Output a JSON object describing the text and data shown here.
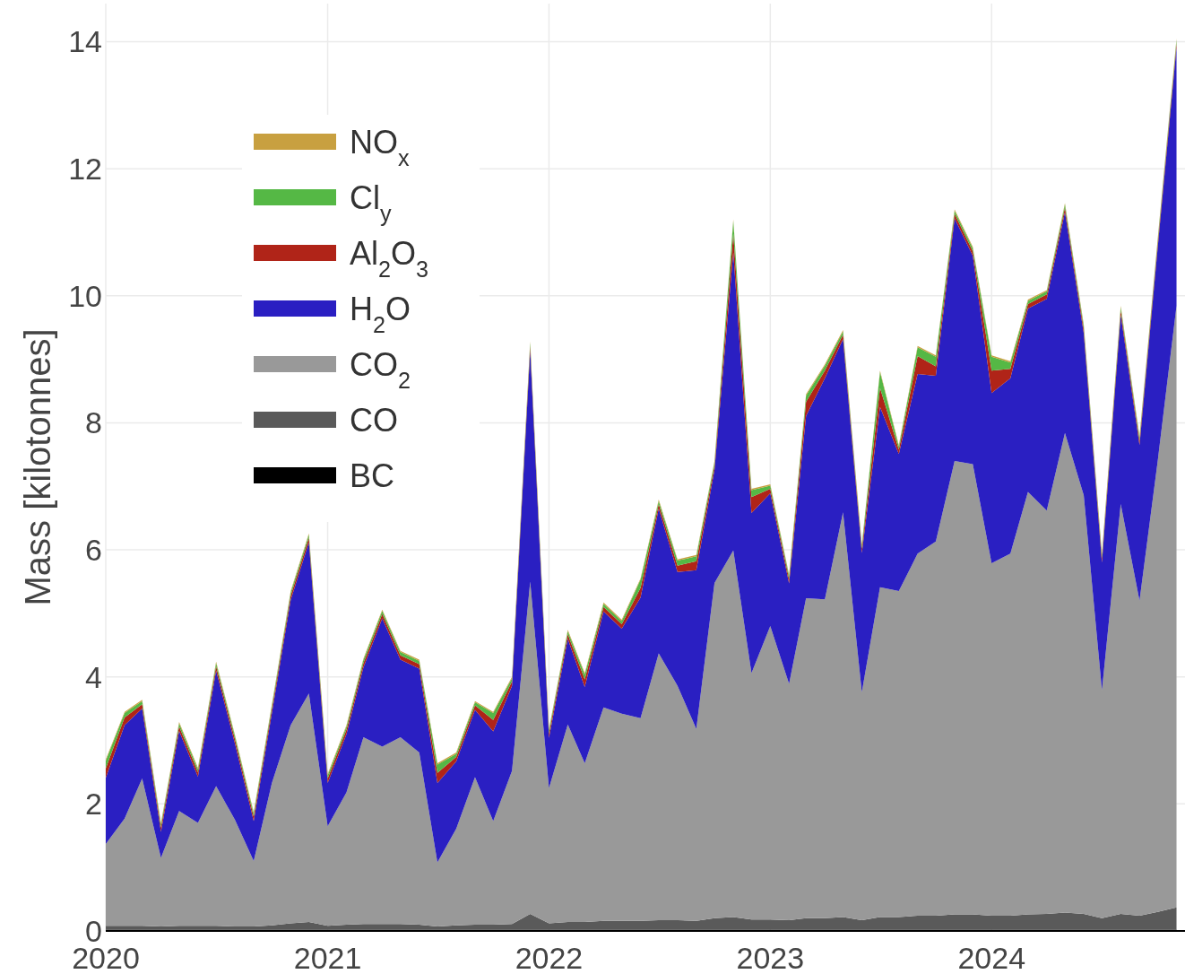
{
  "chart_data": {
    "type": "area",
    "stacked": true,
    "ylabel": "Mass [kilotonnes]",
    "x": [
      "2020-01",
      "2020-02",
      "2020-03",
      "2020-04",
      "2020-05",
      "2020-06",
      "2020-07",
      "2020-08",
      "2020-09",
      "2020-10",
      "2020-11",
      "2020-12",
      "2021-01",
      "2021-02",
      "2021-03",
      "2021-04",
      "2021-05",
      "2021-06",
      "2021-07",
      "2021-08",
      "2021-09",
      "2021-10",
      "2021-11",
      "2021-12",
      "2022-01",
      "2022-02",
      "2022-03",
      "2022-04",
      "2022-05",
      "2022-06",
      "2022-07",
      "2022-08",
      "2022-09",
      "2022-10",
      "2022-11",
      "2022-12",
      "2023-01",
      "2023-02",
      "2023-03",
      "2023-04",
      "2023-05",
      "2023-06",
      "2023-07",
      "2023-08",
      "2023-09",
      "2023-10",
      "2023-11",
      "2023-12",
      "2024-01",
      "2024-02",
      "2024-03",
      "2024-04",
      "2024-05",
      "2024-06",
      "2024-07",
      "2024-08",
      "2024-09",
      "2024-10",
      "2024-11"
    ],
    "series": [
      {
        "name": "BC",
        "color": "#000000",
        "values": [
          0.02,
          0.02,
          0.02,
          0.02,
          0.02,
          0.02,
          0.02,
          0.02,
          0.02,
          0.02,
          0.02,
          0.02,
          0.02,
          0.02,
          0.02,
          0.02,
          0.02,
          0.02,
          0.02,
          0.02,
          0.02,
          0.02,
          0.02,
          0.02,
          0.02,
          0.02,
          0.02,
          0.02,
          0.02,
          0.02,
          0.02,
          0.02,
          0.02,
          0.02,
          0.02,
          0.02,
          0.02,
          0.02,
          0.02,
          0.02,
          0.02,
          0.02,
          0.02,
          0.02,
          0.02,
          0.02,
          0.02,
          0.02,
          0.02,
          0.02,
          0.02,
          0.02,
          0.02,
          0.02,
          0.02,
          0.02,
          0.02,
          0.02,
          0.02
        ]
      },
      {
        "name": "CO",
        "color": "#5a5a5a",
        "values": [
          0.06,
          0.06,
          0.06,
          0.05,
          0.06,
          0.06,
          0.06,
          0.05,
          0.05,
          0.07,
          0.1,
          0.12,
          0.06,
          0.08,
          0.09,
          0.09,
          0.09,
          0.08,
          0.05,
          0.07,
          0.08,
          0.08,
          0.09,
          0.25,
          0.1,
          0.12,
          0.12,
          0.14,
          0.14,
          0.14,
          0.15,
          0.15,
          0.14,
          0.18,
          0.2,
          0.16,
          0.16,
          0.15,
          0.18,
          0.18,
          0.2,
          0.15,
          0.2,
          0.2,
          0.22,
          0.22,
          0.24,
          0.24,
          0.22,
          0.22,
          0.24,
          0.25,
          0.27,
          0.25,
          0.18,
          0.25,
          0.22,
          0.28,
          0.35
        ]
      },
      {
        "name": "CO$_{2}$",
        "color": "#999999",
        "values": [
          1.29,
          1.69,
          2.32,
          1.08,
          1.81,
          1.62,
          2.2,
          1.68,
          1.03,
          2.24,
          3.12,
          3.6,
          1.57,
          2.08,
          2.94,
          2.79,
          2.94,
          2.71,
          1.01,
          1.52,
          2.32,
          1.63,
          2.41,
          5.23,
          2.13,
          3.11,
          2.5,
          3.36,
          3.26,
          3.19,
          4.2,
          3.69,
          3.02,
          5.28,
          5.77,
          3.88,
          4.62,
          3.72,
          5.04,
          5.02,
          6.37,
          3.59,
          5.19,
          5.13,
          5.7,
          5.89,
          7.14,
          7.09,
          5.55,
          5.7,
          6.65,
          6.35,
          7.55,
          6.59,
          3.59,
          6.45,
          4.96,
          7.1,
          9.47
        ]
      },
      {
        "name": "H$_{2}$O",
        "color": "#2a1fc2",
        "values": [
          1.04,
          1.47,
          1.1,
          0.41,
          1.26,
          0.73,
          1.82,
          1.2,
          0.63,
          1.1,
          1.97,
          2.38,
          0.68,
          0.92,
          1.1,
          2.02,
          1.22,
          1.32,
          1.25,
          1.06,
          1.06,
          1.41,
          1.34,
          3.64,
          0.79,
          1.35,
          1.2,
          1.51,
          1.34,
          1.9,
          2.28,
          1.79,
          2.5,
          1.78,
          4.69,
          2.52,
          2.09,
          1.58,
          2.87,
          3.48,
          2.73,
          2.19,
          2.84,
          2.16,
          2.83,
          2.61,
          3.82,
          3.28,
          2.68,
          2.76,
          2.89,
          3.33,
          3.48,
          2.55,
          2.01,
          2.98,
          2.45,
          3.36,
          4.07
        ]
      },
      {
        "name": "Al$_{2}$O$_{3}$",
        "color": "#b02418",
        "values": [
          0.15,
          0.12,
          0.07,
          0.07,
          0.07,
          0.07,
          0.07,
          0.07,
          0.07,
          0.07,
          0.07,
          0.07,
          0.07,
          0.07,
          0.07,
          0.07,
          0.07,
          0.07,
          0.16,
          0.07,
          0.07,
          0.18,
          0.07,
          0.07,
          0.07,
          0.07,
          0.12,
          0.07,
          0.07,
          0.15,
          0.07,
          0.1,
          0.14,
          0.07,
          0.3,
          0.25,
          0.07,
          0.07,
          0.22,
          0.12,
          0.07,
          0.07,
          0.3,
          0.07,
          0.28,
          0.15,
          0.07,
          0.07,
          0.35,
          0.15,
          0.07,
          0.07,
          0.07,
          0.07,
          0.07,
          0.07,
          0.07,
          0.07,
          0.07
        ]
      },
      {
        "name": "Cl$_{y}$",
        "color": "#55b845",
        "values": [
          0.12,
          0.07,
          0.05,
          0.05,
          0.05,
          0.05,
          0.05,
          0.05,
          0.05,
          0.05,
          0.05,
          0.05,
          0.05,
          0.05,
          0.05,
          0.05,
          0.05,
          0.05,
          0.13,
          0.05,
          0.05,
          0.11,
          0.05,
          0.05,
          0.05,
          0.05,
          0.08,
          0.05,
          0.05,
          0.13,
          0.05,
          0.08,
          0.08,
          0.05,
          0.2,
          0.11,
          0.05,
          0.05,
          0.1,
          0.08,
          0.05,
          0.05,
          0.25,
          0.05,
          0.14,
          0.15,
          0.05,
          0.05,
          0.22,
          0.1,
          0.05,
          0.05,
          0.05,
          0.05,
          0.05,
          0.05,
          0.05,
          0.05,
          0.05
        ]
      },
      {
        "name": "NO$_{x}$",
        "color": "#c8a040",
        "values": [
          0.02,
          0.02,
          0.02,
          0.02,
          0.02,
          0.02,
          0.02,
          0.02,
          0.02,
          0.02,
          0.02,
          0.02,
          0.02,
          0.02,
          0.02,
          0.02,
          0.02,
          0.02,
          0.02,
          0.02,
          0.02,
          0.02,
          0.02,
          0.02,
          0.02,
          0.02,
          0.02,
          0.02,
          0.02,
          0.02,
          0.02,
          0.02,
          0.02,
          0.02,
          0.02,
          0.02,
          0.02,
          0.02,
          0.02,
          0.02,
          0.02,
          0.02,
          0.02,
          0.02,
          0.02,
          0.02,
          0.02,
          0.02,
          0.02,
          0.02,
          0.02,
          0.02,
          0.02,
          0.02,
          0.02,
          0.02,
          0.02,
          0.02,
          0.02
        ]
      }
    ],
    "xlim": [
      "2020-01-01",
      "2024-11-15"
    ],
    "xticks": [
      {
        "value": "2020",
        "label": "2020"
      },
      {
        "value": "2021",
        "label": "2021"
      },
      {
        "value": "2022",
        "label": "2022"
      },
      {
        "value": "2023",
        "label": "2023"
      },
      {
        "value": "2024",
        "label": "2024"
      }
    ],
    "ylim": [
      0,
      14.6
    ],
    "yticks": [
      0,
      2,
      4,
      6,
      8,
      10,
      12,
      14
    ],
    "grid": true,
    "legend": "top left"
  }
}
